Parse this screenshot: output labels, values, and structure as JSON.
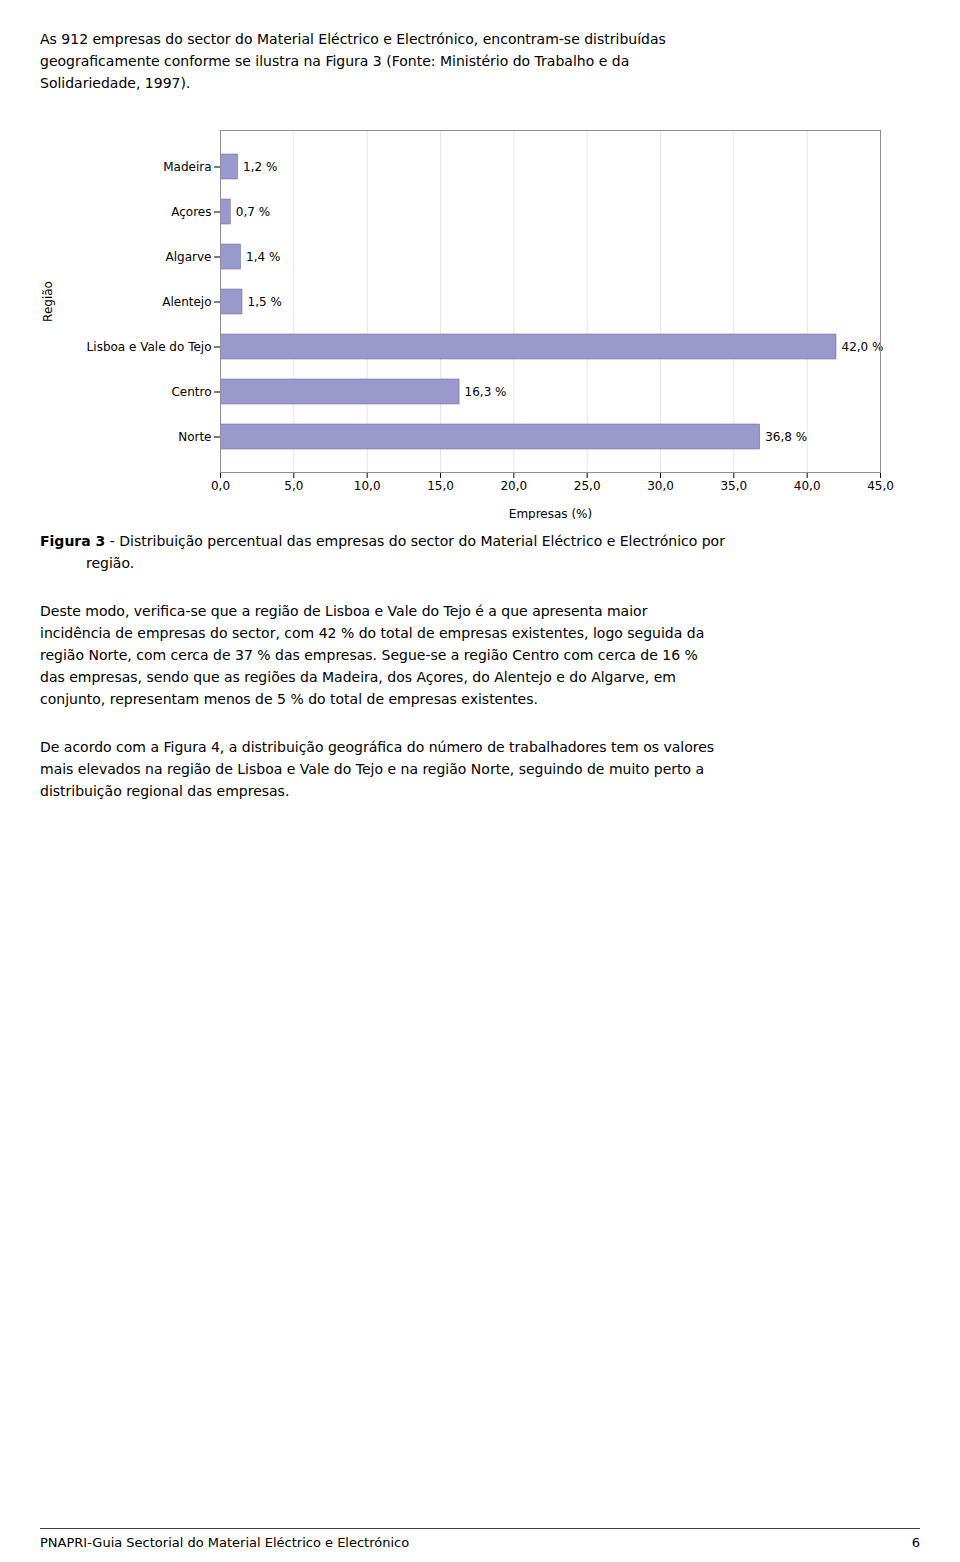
{
  "chart_data": {
    "type": "bar",
    "orientation": "horizontal",
    "categories": [
      "Norte",
      "Centro",
      "Lisboa e Vale do Tejo",
      "Alentejo",
      "Algarve",
      "Açores",
      "Madeira"
    ],
    "values": [
      36.8,
      16.3,
      42.0,
      1.5,
      1.4,
      0.7,
      1.2
    ],
    "value_labels": [
      "36,8 %",
      "16,3 %",
      "42,0 %",
      "1,5 %",
      "1,4 %",
      "0,7 %",
      "1,2 %"
    ],
    "data_labels": true,
    "color": "#9999cc",
    "xlabel": "Empresas (%)",
    "ylabel": "Região",
    "xlim": [
      0,
      45
    ],
    "xticks": [
      {
        "value": 0,
        "label": "0,0"
      },
      {
        "value": 5,
        "label": "5,0"
      },
      {
        "value": 10,
        "label": "10,0"
      },
      {
        "value": 15,
        "label": "15,0"
      },
      {
        "value": 20,
        "label": "20,0"
      },
      {
        "value": 25,
        "label": "25,0"
      },
      {
        "value": 30,
        "label": "30,0"
      },
      {
        "value": 35,
        "label": "35,0"
      },
      {
        "value": 40,
        "label": "40,0"
      },
      {
        "value": 45,
        "label": "45,0"
      }
    ],
    "grid": true,
    "header": [
      "As 912 empresas do sector do Material Eléctrico e Electrónico, encontram-se distribuídas",
      "geograficamente conforme se ilustra na Figura 3 (Fonte: Ministério do Trabalho e da",
      "Solidariedade, 1997)."
    ],
    "caption": {
      "bold": "Figura 3",
      "lines": [
        " - Distribuição percentual das empresas do sector do Material Eléctrico e Electrónico por",
        "região."
      ]
    },
    "body": [
      [
        "Deste modo, verifica-se que a região de Lisboa e Vale do Tejo é a que apresenta maior",
        "incidência de empresas do sector, com 42 % do total de empresas existentes, logo seguida da",
        "região Norte, com cerca de 37 % das empresas. Segue-se a região Centro com cerca de 16 %",
        "das empresas, sendo que as regiões da Madeira, dos Açores, do Alentejo e do Algarve, em",
        "conjunto, representam menos de 5 % do total de empresas existentes."
      ],
      [
        "De acordo com a Figura 4, a distribuição geográfica do número de trabalhadores tem os valores",
        "mais elevados na região de Lisboa e Vale do Tejo e na região Norte, seguindo de muito perto a",
        "distribuição regional das empresas."
      ]
    ],
    "footer": {
      "text": "PNAPRI-Guia Sectorial do Material Eléctrico e Electrónico",
      "page": "6"
    }
  }
}
